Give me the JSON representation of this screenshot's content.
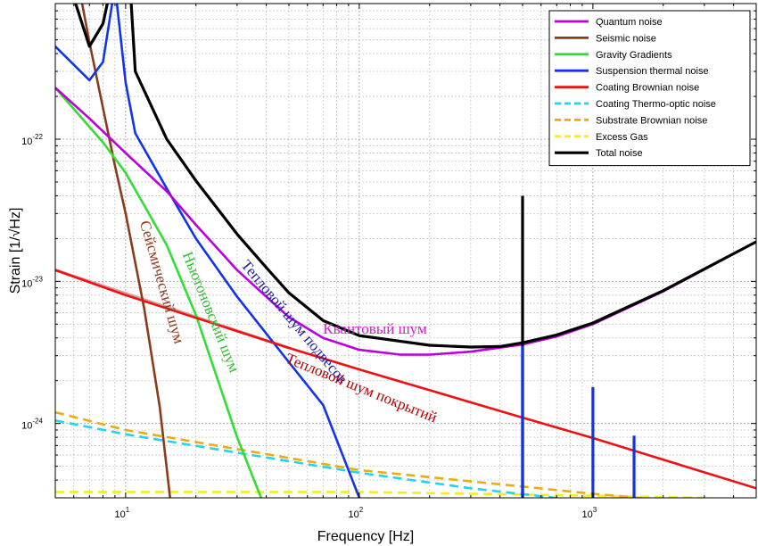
{
  "chart_data": {
    "type": "line",
    "xlabel": "Frequency [Hz]",
    "ylabel": "Strain [1/√Hz]",
    "x_scale": "log",
    "y_scale": "log",
    "xlim": [
      5,
      5000
    ],
    "ylim": [
      3e-25,
      9e-22
    ],
    "grid": true,
    "legend_position": "top-right",
    "x_ticks": [
      {
        "value": 10,
        "base": "10",
        "exp": "1"
      },
      {
        "value": 100,
        "base": "10",
        "exp": "2"
      },
      {
        "value": 1000,
        "base": "10",
        "exp": "3"
      }
    ],
    "y_ticks": [
      {
        "value": 1e-24,
        "base": "10",
        "exp": "-24"
      },
      {
        "value": 1e-23,
        "base": "10",
        "exp": "-23"
      },
      {
        "value": 1e-22,
        "base": "10",
        "exp": "-22"
      }
    ],
    "series": [
      {
        "name": "Quantum noise",
        "color": "#bb00dd",
        "dash": false,
        "points": [
          [
            5,
            2.3e-22
          ],
          [
            7,
            1.4e-22
          ],
          [
            10,
            8e-23
          ],
          [
            15,
            4.3e-23
          ],
          [
            20,
            2.5e-23
          ],
          [
            30,
            1.2e-23
          ],
          [
            40,
            7.8e-24
          ],
          [
            50,
            5.6e-24
          ],
          [
            70,
            4e-24
          ],
          [
            100,
            3.3e-24
          ],
          [
            150,
            3.05e-24
          ],
          [
            200,
            3.05e-24
          ],
          [
            300,
            3.2e-24
          ],
          [
            500,
            3.6e-24
          ],
          [
            700,
            4.1e-24
          ],
          [
            1000,
            5e-24
          ],
          [
            2000,
            8.5e-24
          ],
          [
            5000,
            1.9e-23
          ]
        ]
      },
      {
        "name": "Seismic noise",
        "color": "#8b3a1a",
        "dash": false,
        "points": [
          [
            5,
            9e-21
          ],
          [
            7,
            4.8e-22
          ],
          [
            9,
            6.5e-23
          ],
          [
            10,
            3e-23
          ],
          [
            12,
            6.5e-24
          ],
          [
            14,
            1.3e-24
          ],
          [
            15.5,
            3e-25
          ]
        ]
      },
      {
        "name": "Gravity Gradients",
        "color": "#33dd33",
        "dash": false,
        "points": [
          [
            5,
            2.3e-22
          ],
          [
            8,
            9.5e-23
          ],
          [
            10,
            5.8e-23
          ],
          [
            15,
            1.8e-23
          ],
          [
            20,
            5.8e-24
          ],
          [
            30,
            8e-25
          ],
          [
            38,
            3e-25
          ]
        ]
      },
      {
        "name": "Suspension thermal noise",
        "color": "#1133ee",
        "dash": false,
        "points": [
          [
            5,
            4.5e-22
          ],
          [
            7,
            2.6e-22
          ],
          [
            8,
            3.5e-22
          ],
          [
            9,
            1.2e-21
          ],
          [
            10,
            2.5e-22
          ],
          [
            11,
            1.1e-22
          ],
          [
            15,
            4.5e-23
          ],
          [
            20,
            2e-23
          ],
          [
            30,
            7.8e-24
          ],
          [
            50,
            2.7e-24
          ],
          [
            70,
            1.35e-24
          ],
          [
            100,
            3e-25
          ]
        ]
      },
      {
        "name": "Coating Brownian noise",
        "color": "#ee1111",
        "dash": false,
        "points": [
          [
            5,
            1.2e-23
          ],
          [
            10,
            8e-24
          ],
          [
            50,
            3.4e-24
          ],
          [
            100,
            2.4e-24
          ],
          [
            500,
            1.1e-24
          ],
          [
            1000,
            7.9e-25
          ],
          [
            5000,
            3.5e-25
          ]
        ]
      },
      {
        "name": "Coating Thermo-optic noise",
        "color": "#22d4ee",
        "dash": true,
        "points": [
          [
            5,
            1.05e-24
          ],
          [
            10,
            8.4e-25
          ],
          [
            100,
            4.5e-25
          ],
          [
            300,
            3.5e-25
          ],
          [
            1000,
            2.8e-25
          ]
        ]
      },
      {
        "name": "Substrate Brownian noise",
        "color": "#eeaa11",
        "dash": true,
        "points": [
          [
            5,
            1.2e-24
          ],
          [
            10,
            9e-25
          ],
          [
            100,
            4.7e-25
          ],
          [
            500,
            3.6e-25
          ],
          [
            1000,
            3.2e-25
          ],
          [
            2000,
            2.9e-25
          ]
        ]
      },
      {
        "name": "Excess Gas",
        "color": "#f2ec2a",
        "dash": true,
        "points": [
          [
            5,
            3.3e-25
          ],
          [
            100,
            3.3e-25
          ],
          [
            1000,
            3.1e-25
          ],
          [
            3000,
            3e-25
          ]
        ]
      },
      {
        "name": "Total noise",
        "color": "#000000",
        "dash": false,
        "points": [
          [
            5,
            2.5e-21
          ],
          [
            7,
            4.5e-22
          ],
          [
            8,
            6.5e-22
          ],
          [
            9,
            1.6e-21
          ],
          [
            10,
            4e-21
          ],
          [
            11,
            3e-22
          ],
          [
            15,
            1e-22
          ],
          [
            20,
            5.1e-23
          ],
          [
            30,
            2.15e-23
          ],
          [
            40,
            1.25e-23
          ],
          [
            50,
            8.3e-24
          ],
          [
            70,
            5.3e-24
          ],
          [
            100,
            4.15e-24
          ],
          [
            200,
            3.55e-24
          ],
          [
            300,
            3.45e-24
          ],
          [
            400,
            3.48e-24
          ],
          [
            500,
            3.7e-24
          ],
          [
            700,
            4.2e-24
          ],
          [
            1000,
            5.1e-24
          ],
          [
            2000,
            8.6e-24
          ],
          [
            5000,
            1.9e-23
          ]
        ]
      }
    ],
    "spikes": [
      {
        "x": 500,
        "y_top": 4e-23,
        "color": "#000000"
      },
      {
        "x": 500,
        "y_top": 3.5e-24,
        "color": "#1133ee"
      },
      {
        "x": 1000,
        "y_top": 1.8e-24,
        "color": "#1133ee"
      },
      {
        "x": 1500,
        "y_top": 8.2e-25,
        "color": "#1133ee"
      }
    ],
    "line_segments": [
      {
        "color": "#dd9999",
        "points": [
          [
            5,
            1.2e-23
          ],
          [
            50,
            3.4e-24
          ]
        ]
      }
    ],
    "annotations": [
      {
        "text": "Сейсмический шум",
        "color": "#8b3a1a",
        "at": [
          11.5,
          2.6e-23
        ],
        "rotation": 74
      },
      {
        "text": "Ньютоновский шум",
        "color": "#33bb33",
        "at": [
          17.5,
          1.55e-23
        ],
        "rotation": 68
      },
      {
        "text": "Тепловой шум подвесов",
        "color": "#1a1aaa",
        "at": [
          31,
          1.3e-23
        ],
        "rotation": 50
      },
      {
        "text": "Квантовый шум",
        "color": "#cc22cc",
        "at": [
          70,
          4.3e-24
        ],
        "rotation": 0
      },
      {
        "text": "Тепловой шум покрытий",
        "color": "#bb0000",
        "at": [
          48,
          2.7e-24
        ],
        "rotation": 22
      }
    ]
  }
}
